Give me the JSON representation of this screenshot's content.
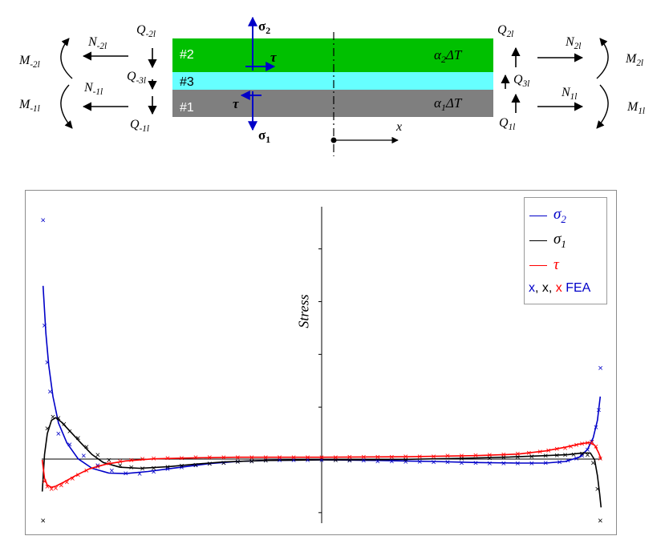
{
  "diagram": {
    "layers": [
      {
        "id": "#2",
        "color": "#00c000",
        "expansion": "α2ΔT"
      },
      {
        "id": "#3",
        "color": "#66ffff",
        "expansion": ""
      },
      {
        "id": "#1",
        "color": "#7f7f7f",
        "expansion": "α1ΔT"
      }
    ],
    "stress_labels": {
      "sigma2": "σ2",
      "sigma1": "σ1",
      "tau_top": "τ",
      "tau_bottom": "τ"
    },
    "axis_label": "x",
    "left_forces": {
      "M_top": "M-2l",
      "M_bottom": "M-1l",
      "N_top": "N-2l",
      "N_bottom": "N-1l",
      "Q_top": "Q-2l",
      "Q_mid": "Q-3l",
      "Q_bottom": "Q-1l"
    },
    "right_forces": {
      "M_top": "M2l",
      "M_bottom": "M1l",
      "N_top": "N2l",
      "N_bottom": "N1l",
      "Q_top": "Q2l",
      "Q_mid": "Q3l",
      "Q_bottom": "Q1l"
    }
  },
  "chart_data": {
    "type": "line",
    "ylabel": "Stress",
    "xlabel": "",
    "title": "",
    "colors": {
      "sigma2": "#0000c8",
      "sigma1": "#000000",
      "tau": "#ff0000"
    },
    "legend": {
      "position": "top-right",
      "entries": [
        {
          "key": "sigma2",
          "label": "σ2",
          "color": "#0000c8"
        },
        {
          "key": "sigma1",
          "label": "σ1",
          "color": "#000000"
        },
        {
          "key": "tau",
          "label": "τ",
          "color": "#ff0000"
        }
      ],
      "fea_parts": [
        {
          "text": "x",
          "color": "#0000c8"
        },
        {
          "text": ", ",
          "color": "#000000"
        },
        {
          "text": "x",
          "color": "#000000"
        },
        {
          "text": ", ",
          "color": "#000000"
        },
        {
          "text": "x",
          "color": "#ff0000"
        },
        {
          "text": " FEA",
          "color": "#0000c8"
        }
      ]
    },
    "x_range": [
      -1,
      1
    ],
    "y_range": [
      -1.2,
      4.8
    ],
    "grid": false,
    "series": [
      {
        "name": "σ2",
        "key": "sigma2",
        "color": "#0000c8",
        "points": [
          [
            -0.995,
            3.3
          ],
          [
            -0.985,
            2.4
          ],
          [
            -0.975,
            1.8
          ],
          [
            -0.96,
            1.2
          ],
          [
            -0.94,
            0.7
          ],
          [
            -0.91,
            0.32
          ],
          [
            -0.87,
            0.02
          ],
          [
            -0.82,
            -0.16
          ],
          [
            -0.76,
            -0.25
          ],
          [
            -0.7,
            -0.26
          ],
          [
            -0.62,
            -0.22
          ],
          [
            -0.52,
            -0.15
          ],
          [
            -0.4,
            -0.07
          ],
          [
            -0.3,
            -0.03
          ],
          [
            -0.2,
            -0.01
          ],
          [
            0,
            0.0
          ],
          [
            0.2,
            -0.01
          ],
          [
            0.4,
            -0.03
          ],
          [
            0.55,
            -0.05
          ],
          [
            0.7,
            -0.06
          ],
          [
            0.8,
            -0.06
          ],
          [
            0.87,
            -0.03
          ],
          [
            0.92,
            0.05
          ],
          [
            0.95,
            0.2
          ],
          [
            0.97,
            0.42
          ],
          [
            0.985,
            0.75
          ],
          [
            0.995,
            1.2
          ]
        ]
      },
      {
        "name": "σ1",
        "key": "sigma1",
        "color": "#000000",
        "points": [
          [
            -0.998,
            -0.6
          ],
          [
            -0.99,
            0.1
          ],
          [
            -0.98,
            0.5
          ],
          [
            -0.965,
            0.75
          ],
          [
            -0.95,
            0.8
          ],
          [
            -0.93,
            0.72
          ],
          [
            -0.9,
            0.55
          ],
          [
            -0.86,
            0.32
          ],
          [
            -0.82,
            0.1
          ],
          [
            -0.78,
            -0.05
          ],
          [
            -0.72,
            -0.14
          ],
          [
            -0.65,
            -0.16
          ],
          [
            -0.55,
            -0.13
          ],
          [
            -0.45,
            -0.08
          ],
          [
            -0.35,
            -0.04
          ],
          [
            -0.2,
            -0.01
          ],
          [
            0,
            0.0
          ],
          [
            0.2,
            0.0
          ],
          [
            0.5,
            0.03
          ],
          [
            0.65,
            0.05
          ],
          [
            0.8,
            0.08
          ],
          [
            0.88,
            0.1
          ],
          [
            0.93,
            0.13
          ],
          [
            0.96,
            0.13
          ],
          [
            0.975,
            0.0
          ],
          [
            0.985,
            -0.3
          ],
          [
            0.993,
            -0.65
          ],
          [
            0.998,
            -0.9
          ]
        ]
      },
      {
        "name": "τ",
        "key": "tau",
        "color": "#ff0000",
        "points": [
          [
            -0.998,
            0.0
          ],
          [
            -0.99,
            -0.35
          ],
          [
            -0.98,
            -0.48
          ],
          [
            -0.965,
            -0.52
          ],
          [
            -0.95,
            -0.5
          ],
          [
            -0.92,
            -0.42
          ],
          [
            -0.88,
            -0.3
          ],
          [
            -0.83,
            -0.17
          ],
          [
            -0.77,
            -0.08
          ],
          [
            -0.7,
            -0.02
          ],
          [
            -0.6,
            0.02
          ],
          [
            -0.45,
            0.04
          ],
          [
            -0.3,
            0.05
          ],
          [
            0,
            0.05
          ],
          [
            0.3,
            0.06
          ],
          [
            0.55,
            0.08
          ],
          [
            0.7,
            0.11
          ],
          [
            0.8,
            0.17
          ],
          [
            0.87,
            0.24
          ],
          [
            0.92,
            0.3
          ],
          [
            0.955,
            0.33
          ],
          [
            0.975,
            0.28
          ],
          [
            0.988,
            0.15
          ],
          [
            0.998,
            0.02
          ]
        ]
      }
    ],
    "fea": [
      {
        "key": "sigma2",
        "color": "#0000c8",
        "points": [
          [
            -0.995,
            4.55
          ],
          [
            -0.99,
            2.55
          ],
          [
            -0.98,
            1.85
          ],
          [
            -0.97,
            1.3
          ],
          [
            -0.94,
            0.5
          ],
          [
            -0.9,
            0.3
          ],
          [
            -0.85,
            0.08
          ],
          [
            -0.8,
            -0.1
          ],
          [
            -0.75,
            -0.2
          ],
          [
            -0.7,
            -0.25
          ],
          [
            -0.65,
            -0.26
          ],
          [
            -0.6,
            -0.22
          ],
          [
            -0.55,
            -0.17
          ],
          [
            -0.5,
            -0.14
          ],
          [
            -0.45,
            -0.1
          ],
          [
            -0.4,
            -0.07
          ],
          [
            -0.35,
            -0.05
          ],
          [
            -0.3,
            -0.03
          ],
          [
            -0.25,
            -0.02
          ],
          [
            -0.2,
            -0.01
          ],
          [
            -0.15,
            0.0
          ],
          [
            -0.1,
            0.0
          ],
          [
            -0.05,
            0.0
          ],
          [
            0,
            0.0
          ],
          [
            0.05,
            0.0
          ],
          [
            0.1,
            -0.01
          ],
          [
            0.15,
            -0.01
          ],
          [
            0.2,
            -0.02
          ],
          [
            0.25,
            -0.02
          ],
          [
            0.3,
            -0.03
          ],
          [
            0.35,
            -0.03
          ],
          [
            0.4,
            -0.04
          ],
          [
            0.45,
            -0.04
          ],
          [
            0.5,
            -0.05
          ],
          [
            0.55,
            -0.05
          ],
          [
            0.6,
            -0.06
          ],
          [
            0.65,
            -0.06
          ],
          [
            0.7,
            -0.06
          ],
          [
            0.75,
            -0.06
          ],
          [
            0.8,
            -0.05
          ],
          [
            0.85,
            -0.04
          ],
          [
            0.88,
            -0.01
          ],
          [
            0.91,
            0.03
          ],
          [
            0.93,
            0.08
          ],
          [
            0.95,
            0.2
          ],
          [
            0.965,
            0.35
          ],
          [
            0.98,
            0.62
          ],
          [
            0.99,
            0.95
          ],
          [
            0.996,
            1.75
          ]
        ]
      },
      {
        "key": "sigma1",
        "color": "#000000",
        "points": [
          [
            -0.995,
            -1.15
          ],
          [
            -0.98,
            0.6
          ],
          [
            -0.96,
            0.82
          ],
          [
            -0.94,
            0.8
          ],
          [
            -0.92,
            0.68
          ],
          [
            -0.9,
            0.55
          ],
          [
            -0.87,
            0.42
          ],
          [
            -0.84,
            0.25
          ],
          [
            -0.8,
            0.1
          ],
          [
            -0.76,
            0.0
          ],
          [
            -0.72,
            -0.1
          ],
          [
            -0.68,
            -0.14
          ],
          [
            -0.64,
            -0.16
          ],
          [
            -0.6,
            -0.15
          ],
          [
            -0.55,
            -0.13
          ],
          [
            -0.5,
            -0.11
          ],
          [
            -0.45,
            -0.09
          ],
          [
            -0.4,
            -0.07
          ],
          [
            -0.35,
            -0.05
          ],
          [
            -0.3,
            -0.03
          ],
          [
            -0.25,
            -0.02
          ],
          [
            -0.2,
            -0.01
          ],
          [
            0.05,
            0.0
          ],
          [
            0.1,
            0.0
          ],
          [
            0.3,
            0.01
          ],
          [
            0.5,
            0.03
          ],
          [
            0.6,
            0.04
          ],
          [
            0.65,
            0.05
          ],
          [
            0.7,
            0.06
          ],
          [
            0.75,
            0.07
          ],
          [
            0.8,
            0.08
          ],
          [
            0.84,
            0.09
          ],
          [
            0.87,
            0.1
          ],
          [
            0.9,
            0.11
          ],
          [
            0.93,
            0.12
          ],
          [
            0.95,
            0.1
          ],
          [
            0.97,
            -0.05
          ],
          [
            0.985,
            -0.55
          ],
          [
            0.995,
            -1.15
          ]
        ]
      },
      {
        "key": "tau",
        "color": "#ff0000",
        "points": [
          [
            -0.99,
            -0.4
          ],
          [
            -0.98,
            -0.5
          ],
          [
            -0.965,
            -0.55
          ],
          [
            -0.95,
            -0.53
          ],
          [
            -0.93,
            -0.48
          ],
          [
            -0.91,
            -0.42
          ],
          [
            -0.89,
            -0.35
          ],
          [
            -0.87,
            -0.28
          ],
          [
            -0.84,
            -0.2
          ],
          [
            -0.8,
            -0.12
          ],
          [
            -0.76,
            -0.06
          ],
          [
            -0.72,
            -0.02
          ],
          [
            -0.68,
            0.0
          ],
          [
            -0.64,
            0.02
          ],
          [
            -0.6,
            0.03
          ],
          [
            -0.55,
            0.04
          ],
          [
            -0.5,
            0.04
          ],
          [
            -0.45,
            0.05
          ],
          [
            -0.4,
            0.05
          ],
          [
            -0.35,
            0.05
          ],
          [
            -0.3,
            0.05
          ],
          [
            -0.25,
            0.05
          ],
          [
            -0.2,
            0.05
          ],
          [
            -0.15,
            0.05
          ],
          [
            -0.1,
            0.05
          ],
          [
            -0.05,
            0.05
          ],
          [
            0.0,
            0.05
          ],
          [
            0.05,
            0.05
          ],
          [
            0.1,
            0.06
          ],
          [
            0.15,
            0.06
          ],
          [
            0.2,
            0.06
          ],
          [
            0.25,
            0.06
          ],
          [
            0.3,
            0.07
          ],
          [
            0.35,
            0.07
          ],
          [
            0.4,
            0.07
          ],
          [
            0.45,
            0.08
          ],
          [
            0.5,
            0.08
          ],
          [
            0.55,
            0.09
          ],
          [
            0.6,
            0.1
          ],
          [
            0.65,
            0.11
          ],
          [
            0.7,
            0.12
          ],
          [
            0.74,
            0.14
          ],
          [
            0.78,
            0.16
          ],
          [
            0.81,
            0.18
          ],
          [
            0.84,
            0.21
          ],
          [
            0.87,
            0.23
          ],
          [
            0.89,
            0.26
          ],
          [
            0.91,
            0.29
          ],
          [
            0.93,
            0.31
          ],
          [
            0.95,
            0.33
          ],
          [
            0.965,
            0.34
          ],
          [
            0.98,
            0.26
          ],
          [
            0.995,
            0.03
          ]
        ]
      }
    ]
  }
}
